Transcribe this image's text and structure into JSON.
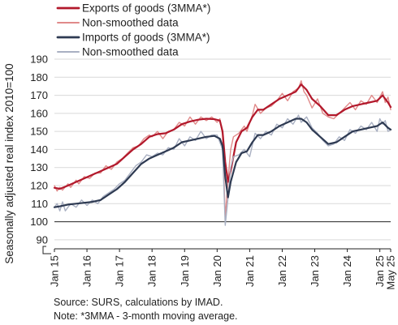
{
  "chart_data": {
    "type": "line",
    "xlabel": "",
    "ylabel": "Seasonally adjusted real index 2010=100",
    "ylim": [
      85,
      190
    ],
    "yticks": [
      90,
      100,
      110,
      120,
      130,
      140,
      150,
      160,
      170,
      180,
      190
    ],
    "reference_line": 100,
    "y_axis_break": true,
    "x_start": "2015-01",
    "x_end": "2025-05",
    "xtick_labels": [
      "Jan 15",
      "Jan 16",
      "Jan 17",
      "Jan 18",
      "Jan 19",
      "Jan 20",
      "Jan 21",
      "Jan 22",
      "Jan 23",
      "Jan 24",
      "Jan 25",
      "May 25"
    ],
    "xtick_months": [
      "2015-01",
      "2016-01",
      "2017-01",
      "2018-01",
      "2019-01",
      "2020-01",
      "2021-01",
      "2022-01",
      "2023-01",
      "2024-01",
      "2025-01",
      "2025-05"
    ],
    "grid": "horizontal",
    "legend_position": "top-left",
    "series": [
      {
        "name": "Exports of goods (3MMA*)",
        "color": "#b2182b",
        "width": 2.2,
        "points": [
          [
            "2015-01",
            118.8
          ],
          [
            "2015-03",
            118.2
          ],
          [
            "2015-06",
            120
          ],
          [
            "2015-09",
            122
          ],
          [
            "2015-12",
            124
          ],
          [
            "2016-03",
            126
          ],
          [
            "2016-06",
            128
          ],
          [
            "2016-09",
            130
          ],
          [
            "2016-12",
            132
          ],
          [
            "2017-03",
            136
          ],
          [
            "2017-06",
            140
          ],
          [
            "2017-09",
            143
          ],
          [
            "2017-12",
            147
          ],
          [
            "2018-03",
            148.5
          ],
          [
            "2018-06",
            149
          ],
          [
            "2018-09",
            151
          ],
          [
            "2018-12",
            154
          ],
          [
            "2019-03",
            155.5
          ],
          [
            "2019-06",
            156.5
          ],
          [
            "2019-09",
            157
          ],
          [
            "2019-12",
            156.8
          ],
          [
            "2020-02",
            156
          ],
          [
            "2020-03",
            150
          ],
          [
            "2020-04",
            133
          ],
          [
            "2020-05",
            122
          ],
          [
            "2020-06",
            128
          ],
          [
            "2020-08",
            144
          ],
          [
            "2020-10",
            150
          ],
          [
            "2020-12",
            152
          ],
          [
            "2021-02",
            158
          ],
          [
            "2021-04",
            162
          ],
          [
            "2021-06",
            162
          ],
          [
            "2021-09",
            165
          ],
          [
            "2021-12",
            168
          ],
          [
            "2022-03",
            170
          ],
          [
            "2022-06",
            172
          ],
          [
            "2022-08",
            176
          ],
          [
            "2022-10",
            173
          ],
          [
            "2022-12",
            168
          ],
          [
            "2023-03",
            164
          ],
          [
            "2023-06",
            159
          ],
          [
            "2023-09",
            159
          ],
          [
            "2023-12",
            162
          ],
          [
            "2024-03",
            164
          ],
          [
            "2024-06",
            165
          ],
          [
            "2024-09",
            166
          ],
          [
            "2024-12",
            167
          ],
          [
            "2025-02",
            170
          ],
          [
            "2025-04",
            166
          ],
          [
            "2025-05",
            163.5
          ]
        ]
      },
      {
        "name": "Non-smoothed data",
        "color": "#e08a8a",
        "width": 1.4,
        "points": [
          [
            "2015-01",
            120
          ],
          [
            "2015-02",
            117
          ],
          [
            "2015-03",
            119
          ],
          [
            "2015-04",
            117.5
          ],
          [
            "2015-06",
            121
          ],
          [
            "2015-07",
            119
          ],
          [
            "2015-09",
            123
          ],
          [
            "2015-10",
            121
          ],
          [
            "2015-12",
            125
          ],
          [
            "2016-02",
            124
          ],
          [
            "2016-04",
            127
          ],
          [
            "2016-06",
            127
          ],
          [
            "2016-08",
            131
          ],
          [
            "2016-10",
            129
          ],
          [
            "2016-12",
            133
          ],
          [
            "2017-02",
            135
          ],
          [
            "2017-04",
            138
          ],
          [
            "2017-06",
            141
          ],
          [
            "2017-08",
            142
          ],
          [
            "2017-10",
            146
          ],
          [
            "2017-12",
            148
          ],
          [
            "2018-01",
            147
          ],
          [
            "2018-03",
            150
          ],
          [
            "2018-05",
            146
          ],
          [
            "2018-07",
            150
          ],
          [
            "2018-09",
            151
          ],
          [
            "2018-11",
            155
          ],
          [
            "2019-01",
            153
          ],
          [
            "2019-03",
            158
          ],
          [
            "2019-05",
            154
          ],
          [
            "2019-07",
            158
          ],
          [
            "2019-09",
            156
          ],
          [
            "2019-11",
            158
          ],
          [
            "2020-01",
            155
          ],
          [
            "2020-02",
            157
          ],
          [
            "2020-03",
            148
          ],
          [
            "2020-04",
            102
          ],
          [
            "2020-05",
            123
          ],
          [
            "2020-06",
            140
          ],
          [
            "2020-07",
            147
          ],
          [
            "2020-09",
            149
          ],
          [
            "2020-11",
            153
          ],
          [
            "2020-12",
            150
          ],
          [
            "2021-02",
            159
          ],
          [
            "2021-03",
            165
          ],
          [
            "2021-05",
            160
          ],
          [
            "2021-07",
            163
          ],
          [
            "2021-09",
            164
          ],
          [
            "2021-11",
            167
          ],
          [
            "2022-01",
            171
          ],
          [
            "2022-03",
            167
          ],
          [
            "2022-05",
            172
          ],
          [
            "2022-07",
            174
          ],
          [
            "2022-08",
            178
          ],
          [
            "2022-09",
            172
          ],
          [
            "2022-10",
            170
          ],
          [
            "2022-12",
            163
          ],
          [
            "2023-02",
            168
          ],
          [
            "2023-04",
            160
          ],
          [
            "2023-06",
            158
          ],
          [
            "2023-08",
            157
          ],
          [
            "2023-10",
            160
          ],
          [
            "2023-12",
            163
          ],
          [
            "2024-02",
            166
          ],
          [
            "2024-04",
            162
          ],
          [
            "2024-06",
            167
          ],
          [
            "2024-08",
            165
          ],
          [
            "2024-10",
            170
          ],
          [
            "2024-12",
            166
          ],
          [
            "2025-02",
            172
          ],
          [
            "2025-03",
            166
          ],
          [
            "2025-04",
            169
          ],
          [
            "2025-05",
            162
          ]
        ]
      },
      {
        "name": "Imports of goods (3MMA*)",
        "color": "#2e3a52",
        "width": 2.2,
        "points": [
          [
            "2015-01",
            108
          ],
          [
            "2015-03",
            108.5
          ],
          [
            "2015-06",
            109.5
          ],
          [
            "2015-09",
            110
          ],
          [
            "2015-12",
            110.5
          ],
          [
            "2016-03",
            111
          ],
          [
            "2016-06",
            112
          ],
          [
            "2016-09",
            115
          ],
          [
            "2016-12",
            118
          ],
          [
            "2017-03",
            122
          ],
          [
            "2017-06",
            127
          ],
          [
            "2017-09",
            132
          ],
          [
            "2017-12",
            135
          ],
          [
            "2018-03",
            137
          ],
          [
            "2018-06",
            139
          ],
          [
            "2018-09",
            141
          ],
          [
            "2018-12",
            144
          ],
          [
            "2019-03",
            145
          ],
          [
            "2019-06",
            146
          ],
          [
            "2019-09",
            147
          ],
          [
            "2019-12",
            147.5
          ],
          [
            "2020-02",
            146
          ],
          [
            "2020-03",
            142
          ],
          [
            "2020-04",
            125
          ],
          [
            "2020-05",
            113.5
          ],
          [
            "2020-06",
            122
          ],
          [
            "2020-08",
            133
          ],
          [
            "2020-10",
            138
          ],
          [
            "2020-12",
            139
          ],
          [
            "2021-02",
            144
          ],
          [
            "2021-04",
            148
          ],
          [
            "2021-06",
            148
          ],
          [
            "2021-09",
            150
          ],
          [
            "2021-12",
            153
          ],
          [
            "2022-03",
            155
          ],
          [
            "2022-06",
            157
          ],
          [
            "2022-08",
            157
          ],
          [
            "2022-10",
            155
          ],
          [
            "2022-12",
            151
          ],
          [
            "2023-03",
            147
          ],
          [
            "2023-06",
            143
          ],
          [
            "2023-09",
            144
          ],
          [
            "2023-12",
            147
          ],
          [
            "2024-03",
            150
          ],
          [
            "2024-06",
            151
          ],
          [
            "2024-09",
            152
          ],
          [
            "2024-12",
            153
          ],
          [
            "2025-02",
            155
          ],
          [
            "2025-04",
            152
          ],
          [
            "2025-05",
            151
          ]
        ]
      },
      {
        "name": "Non-smoothed data",
        "color": "#a9b0c2",
        "width": 1.4,
        "points": [
          [
            "2015-01",
            108
          ],
          [
            "2015-02",
            110
          ],
          [
            "2015-03",
            106
          ],
          [
            "2015-04",
            111
          ],
          [
            "2015-05",
            106
          ],
          [
            "2015-07",
            110
          ],
          [
            "2015-09",
            108
          ],
          [
            "2015-11",
            112
          ],
          [
            "2016-01",
            109
          ],
          [
            "2016-03",
            112
          ],
          [
            "2016-05",
            110
          ],
          [
            "2016-07",
            114
          ],
          [
            "2016-09",
            116
          ],
          [
            "2016-11",
            118
          ],
          [
            "2017-01",
            121
          ],
          [
            "2017-03",
            123
          ],
          [
            "2017-05",
            127
          ],
          [
            "2017-07",
            131
          ],
          [
            "2017-09",
            133
          ],
          [
            "2017-11",
            137
          ],
          [
            "2018-01",
            136
          ],
          [
            "2018-03",
            138
          ],
          [
            "2018-05",
            137
          ],
          [
            "2018-07",
            141
          ],
          [
            "2018-09",
            140
          ],
          [
            "2018-11",
            146
          ],
          [
            "2019-01",
            142
          ],
          [
            "2019-03",
            147
          ],
          [
            "2019-05",
            145
          ],
          [
            "2019-07",
            150
          ],
          [
            "2019-09",
            146
          ],
          [
            "2019-11",
            148
          ],
          [
            "2020-01",
            148
          ],
          [
            "2020-02",
            144
          ],
          [
            "2020-03",
            140
          ],
          [
            "2020-04",
            98
          ],
          [
            "2020-05",
            113
          ],
          [
            "2020-06",
            130
          ],
          [
            "2020-07",
            136
          ],
          [
            "2020-09",
            137
          ],
          [
            "2020-11",
            140
          ],
          [
            "2021-01",
            136
          ],
          [
            "2021-03",
            149
          ],
          [
            "2021-05",
            146
          ],
          [
            "2021-07",
            150
          ],
          [
            "2021-09",
            148
          ],
          [
            "2021-11",
            154
          ],
          [
            "2022-01",
            152
          ],
          [
            "2022-03",
            157
          ],
          [
            "2022-05",
            154
          ],
          [
            "2022-07",
            159
          ],
          [
            "2022-08",
            155
          ],
          [
            "2022-10",
            158
          ],
          [
            "2022-12",
            152
          ],
          [
            "2023-02",
            149
          ],
          [
            "2023-04",
            145
          ],
          [
            "2023-06",
            142
          ],
          [
            "2023-08",
            143
          ],
          [
            "2023-10",
            147
          ],
          [
            "2023-12",
            145
          ],
          [
            "2024-02",
            151
          ],
          [
            "2024-04",
            149
          ],
          [
            "2024-06",
            153
          ],
          [
            "2024-08",
            151
          ],
          [
            "2024-10",
            155
          ],
          [
            "2024-12",
            150
          ],
          [
            "2025-01",
            157
          ],
          [
            "2025-02",
            154
          ],
          [
            "2025-03",
            156
          ],
          [
            "2025-04",
            150
          ],
          [
            "2025-05",
            151
          ]
        ]
      }
    ]
  },
  "footnotes": {
    "source": "Source: SURS, calculations by IMAD.",
    "note": "Note: *3MMA - 3-month moving average."
  }
}
